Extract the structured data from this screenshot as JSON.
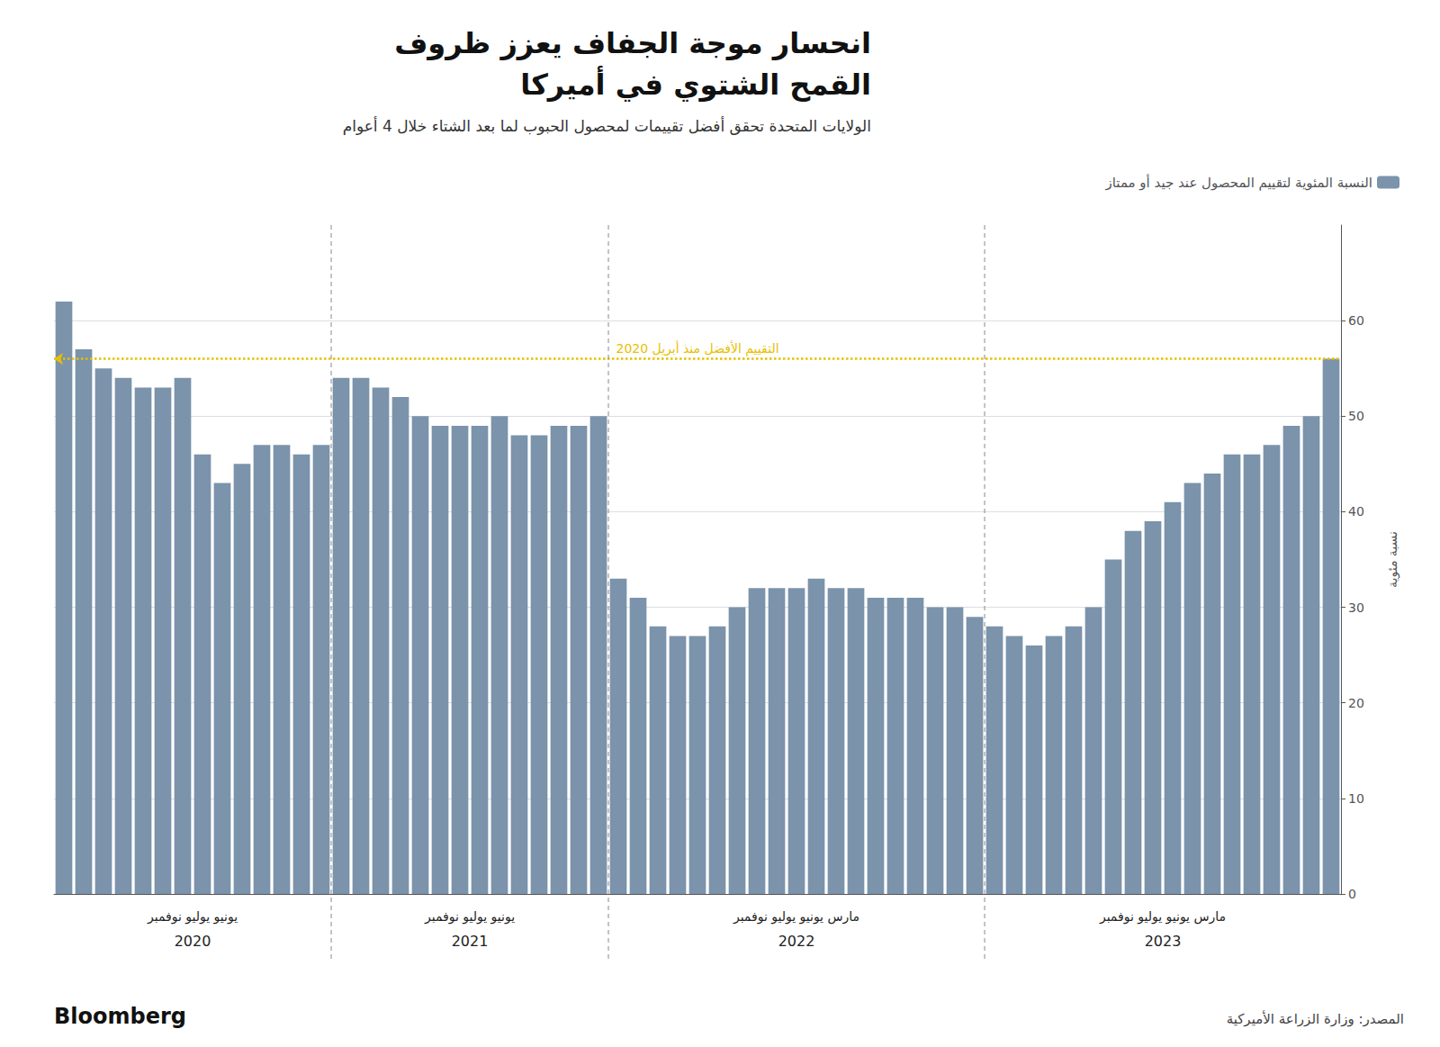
{
  "chart_data": {
    "type": "bar",
    "title": "انحسار موجة الجفاف يعزز ظروف\nالقمح الشتوي في أميركا",
    "subtitle": "الولايات المتحدة تحقق أفضل تقييمات لمحصول الحبوب لما بعد الشتاء خلال 4 أعوام",
    "ylabel": "نسبة مئوية",
    "categories": [
      null,
      null,
      null,
      null,
      null,
      null,
      null,
      null,
      null,
      null,
      null,
      null,
      null,
      null,
      null,
      null,
      null,
      null,
      null,
      null,
      null,
      null,
      null,
      null,
      null,
      null,
      null,
      null,
      null,
      null,
      null,
      null,
      null,
      null,
      null,
      null,
      null,
      null,
      null,
      null,
      null,
      null,
      null,
      null,
      null,
      null,
      null,
      null,
      null,
      null,
      null,
      null,
      null,
      null,
      null,
      null,
      null,
      null,
      null,
      null,
      null,
      null,
      null,
      null,
      null
    ],
    "series": [
      {
        "name": "النسبة المئوية لتقييم المحصول عند جيد أو ممتاز",
        "color": "#7b93ab",
        "values": [
          62,
          57,
          55,
          54,
          53,
          53,
          54,
          46,
          43,
          45,
          47,
          47,
          46,
          47,
          54,
          54,
          53,
          52,
          50,
          49,
          49,
          49,
          50,
          48,
          48,
          49,
          49,
          50,
          33,
          31,
          28,
          27,
          27,
          28,
          30,
          32,
          32,
          32,
          33,
          32,
          32,
          31,
          31,
          31,
          30,
          30,
          29,
          28,
          27,
          26,
          27,
          28,
          30,
          35,
          38,
          39,
          41,
          43,
          44,
          46,
          46,
          47,
          49,
          50,
          56
        ]
      }
    ],
    "groups": [
      {
        "label": "2020",
        "months": "يونيو يوليو نوفمبر",
        "count": 14
      },
      {
        "label": "2021",
        "months": "يونيو يوليو نوفمبر",
        "count": 14
      },
      {
        "label": "2022",
        "months": "مارس يونيو يوليو نوفمبر",
        "count": 19
      },
      {
        "label": "2023",
        "months": "مارس يونيو يوليو نوفمبر",
        "count": 18
      }
    ],
    "reference_line": {
      "value": 56,
      "label": "التقييم الأفضل منذ أبريل 2020",
      "color": "#e8c000"
    },
    "source": "المصدر: وزارة الزراعة الأميركية",
    "credit": "Bloomberg",
    "ylim": [
      0,
      70
    ],
    "yticks": [
      0,
      10,
      20,
      30,
      40,
      50,
      60
    ],
    "grid": true,
    "legend": "top-right"
  }
}
